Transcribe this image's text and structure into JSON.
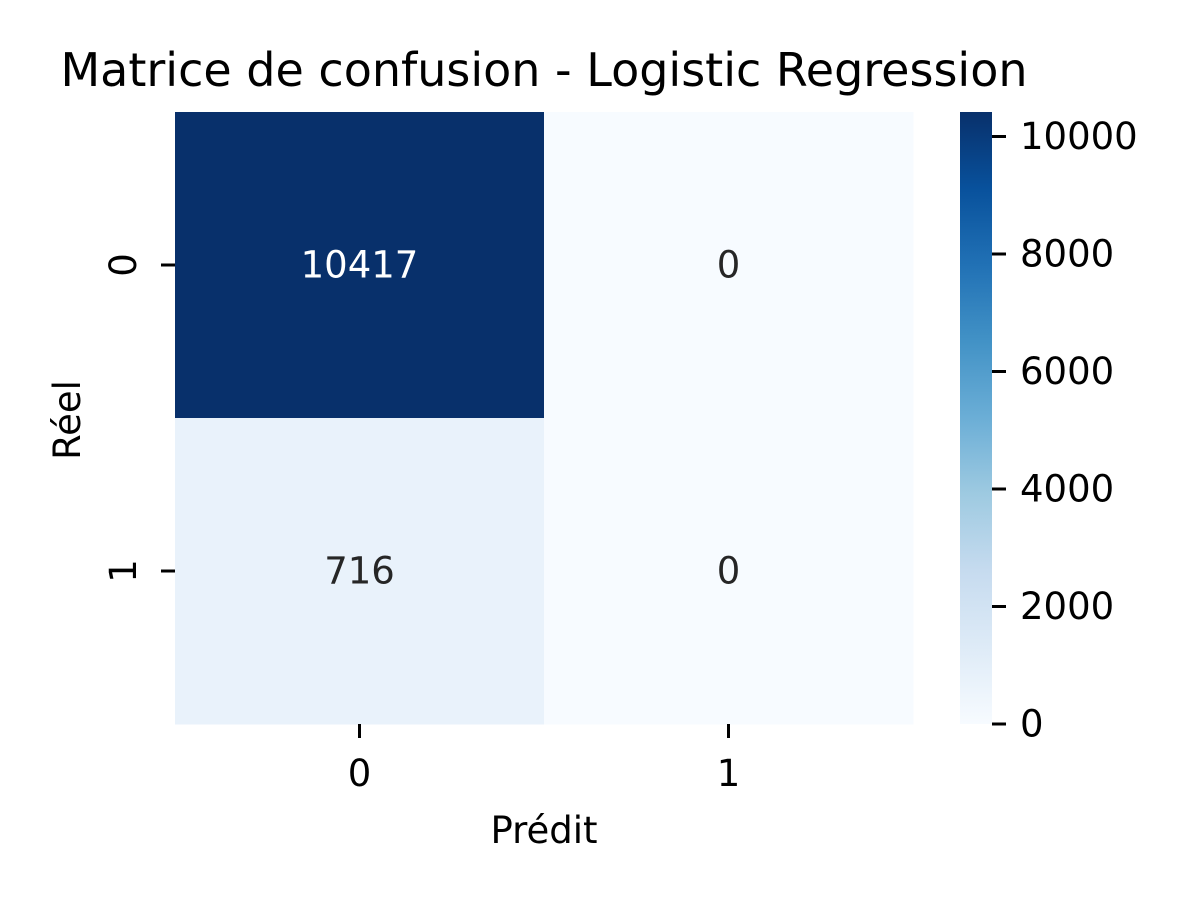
{
  "chart_data": {
    "type": "heatmap",
    "title": "Matrice de confusion - Logistic Regression",
    "xlabel": "Prédit",
    "ylabel": "Réel",
    "x_categories": [
      "0",
      "1"
    ],
    "y_categories": [
      "0",
      "1"
    ],
    "values": [
      [
        10417,
        0
      ],
      [
        716,
        0
      ]
    ],
    "colormap": "Blues",
    "colorbar": {
      "min": 0,
      "max": 10417,
      "ticks": [
        0,
        2000,
        4000,
        6000,
        8000,
        10000
      ],
      "tick_labels": [
        "0",
        "2000",
        "4000",
        "6000",
        "8000",
        "10000"
      ]
    },
    "colors": {
      "low": "#f7fbff",
      "mid_low": "#c6dbef",
      "mid": "#6baed6",
      "mid_high": "#2171b5",
      "high": "#08306b",
      "annotation_dark": "#262626",
      "annotation_light": "#ffffff"
    }
  }
}
